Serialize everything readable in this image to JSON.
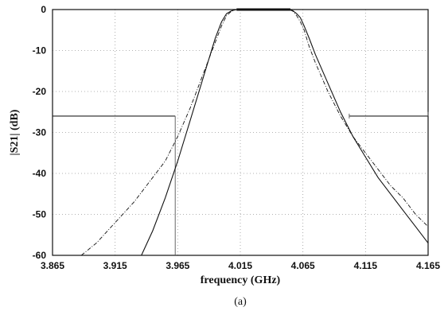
{
  "chart_data": {
    "type": "line",
    "xlabel": "frequency (GHz)",
    "ylabel": "|S21| (dB)",
    "caption": "(a)",
    "xlim": [
      3.865,
      4.165
    ],
    "ylim": [
      -60,
      0
    ],
    "x_ticks": [
      "3.865",
      "3.915",
      "3.965",
      "4.015",
      "4.065",
      "4.115",
      "4.165"
    ],
    "y_ticks": [
      "0",
      "-10",
      "-20",
      "-30",
      "-40",
      "-50",
      "-60"
    ],
    "grid": true,
    "series": [
      {
        "style": "solid",
        "x": [
          3.936,
          3.945,
          3.955,
          3.965,
          3.975,
          3.985,
          3.995,
          4.0,
          4.004,
          4.008,
          4.012,
          4.015,
          4.03,
          4.045,
          4.054,
          4.057,
          4.06,
          4.063,
          4.066,
          4.07,
          4.075,
          4.085,
          4.095,
          4.105,
          4.115,
          4.125,
          4.135,
          4.145,
          4.155,
          4.165
        ],
        "y": [
          -60,
          -54,
          -46,
          -37,
          -27,
          -17,
          -7,
          -3,
          -1,
          -0.3,
          0,
          0,
          0,
          0,
          0,
          -0.3,
          -1,
          -2,
          -4,
          -7,
          -11,
          -18,
          -25,
          -31,
          -36,
          -41,
          -45,
          -49,
          -53,
          -57
        ]
      },
      {
        "style": "dashed",
        "x": [
          3.888,
          3.9,
          3.915,
          3.93,
          3.945,
          3.955,
          3.965,
          3.975,
          3.985,
          3.995,
          4.0,
          4.004,
          4.008,
          4.012,
          4.015,
          4.03,
          4.045,
          4.054,
          4.057,
          4.06,
          4.063,
          4.066,
          4.07,
          4.075,
          4.085,
          4.095,
          4.105,
          4.115,
          4.125,
          4.135,
          4.145,
          4.155,
          4.165
        ],
        "y": [
          -60,
          -57,
          -52,
          -47,
          -41,
          -37,
          -31,
          -24,
          -16,
          -8,
          -4,
          -1.5,
          -0.4,
          0,
          0,
          0,
          0,
          0,
          -0.4,
          -1.5,
          -3,
          -5,
          -9,
          -13,
          -20,
          -26,
          -31,
          -35,
          -39,
          -43,
          -46,
          -50,
          -53
        ]
      }
    ],
    "spec_masks": [
      {
        "style": "solid",
        "x": [
          3.865,
          3.963
        ],
        "y": -26,
        "vertical_to": -60
      },
      {
        "style": "solid",
        "x": [
          4.102,
          4.165
        ],
        "y": -26,
        "vertical_to": -25
      }
    ]
  }
}
